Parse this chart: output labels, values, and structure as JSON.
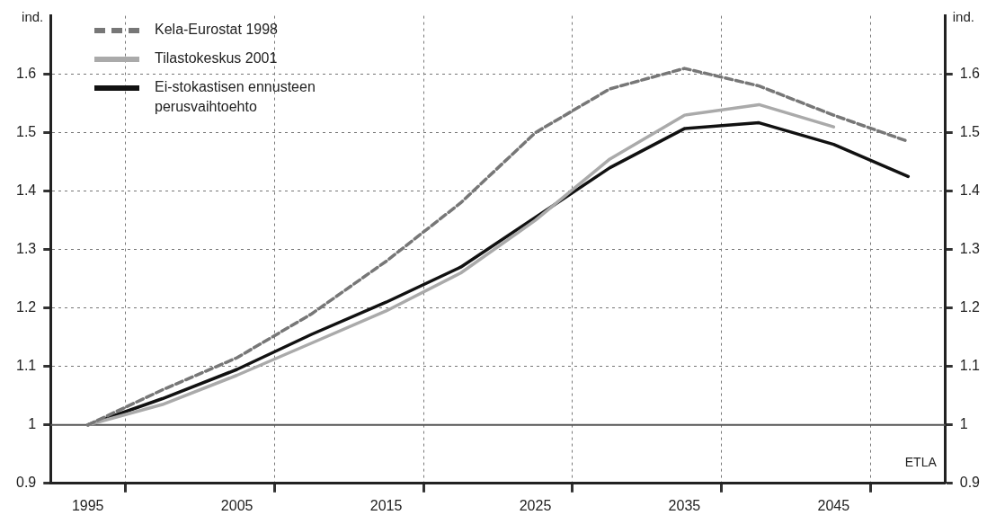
{
  "chart_data": {
    "type": "line",
    "ylabel": "ind.",
    "y2label": "ind.",
    "x": [
      1995,
      2000,
      2005,
      2010,
      2015,
      2020,
      2025,
      2030,
      2035,
      2040,
      2045,
      2050
    ],
    "xlim": [
      1992.5,
      2052.5
    ],
    "xticks": [
      1995,
      {
        "value": 1997.5,
        "label": null
      },
      2005,
      {
        "value": 2007.5,
        "label": null
      },
      2015,
      {
        "value": 2017.5,
        "label": null
      },
      2025,
      {
        "value": 2027.5,
        "label": null
      },
      2035,
      {
        "value": 2037.5,
        "label": null
      },
      2045,
      {
        "value": 2047.5,
        "label": null
      }
    ],
    "ylim": [
      0.9,
      1.7
    ],
    "yticks": [
      0.9,
      1,
      1.1,
      1.2,
      1.3,
      1.4,
      1.5,
      1.6
    ],
    "y2lim": [
      0.9,
      1.7
    ],
    "y2ticks": [
      0.9,
      1,
      1.1,
      1.2,
      1.3,
      1.4,
      1.5,
      1.6
    ],
    "series": [
      {
        "name": "Kela-Eurostat 1998",
        "color": "#777777",
        "line_style": "dashed",
        "values": [
          1.0,
          1.06,
          1.115,
          1.19,
          1.28,
          1.38,
          1.5,
          1.575,
          1.61,
          1.58,
          1.53,
          1.485
        ]
      },
      {
        "name": "Tilastokeskus 2001",
        "color": "#aaaaaa",
        "line_style": "solid",
        "values": [
          1.0,
          1.035,
          1.085,
          1.14,
          1.195,
          1.26,
          1.35,
          1.455,
          1.53,
          1.548,
          1.51,
          null
        ]
      },
      {
        "name": "Ei-stokastisen ennusteen perusvaihtoehto",
        "color": "#111111",
        "line_style": "solid",
        "values": [
          1.0,
          1.045,
          1.095,
          1.155,
          1.21,
          1.27,
          1.355,
          1.44,
          1.507,
          1.517,
          1.48,
          1.425
        ]
      }
    ],
    "ref_lines": [
      {
        "axis": "y",
        "value": 1,
        "color": "#555555"
      }
    ],
    "annotations": [
      "ETLA"
    ],
    "grid": true,
    "legend": "top left",
    "marker": "none"
  }
}
